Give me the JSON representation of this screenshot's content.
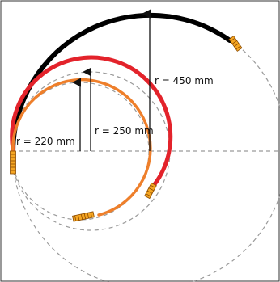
{
  "labels": {
    "r220": "r = 220 mm",
    "r250": "r = 250 mm",
    "r450": "r = 450 mm"
  },
  "colors": {
    "frame": "#333333",
    "dashed_guides": "#9a9a9a",
    "cable_450": "#000000",
    "cable_250": "#e3232b",
    "cable_220": "#ee7f2b",
    "connector_orange": "#f5a623",
    "arrow": "#111111"
  }
}
